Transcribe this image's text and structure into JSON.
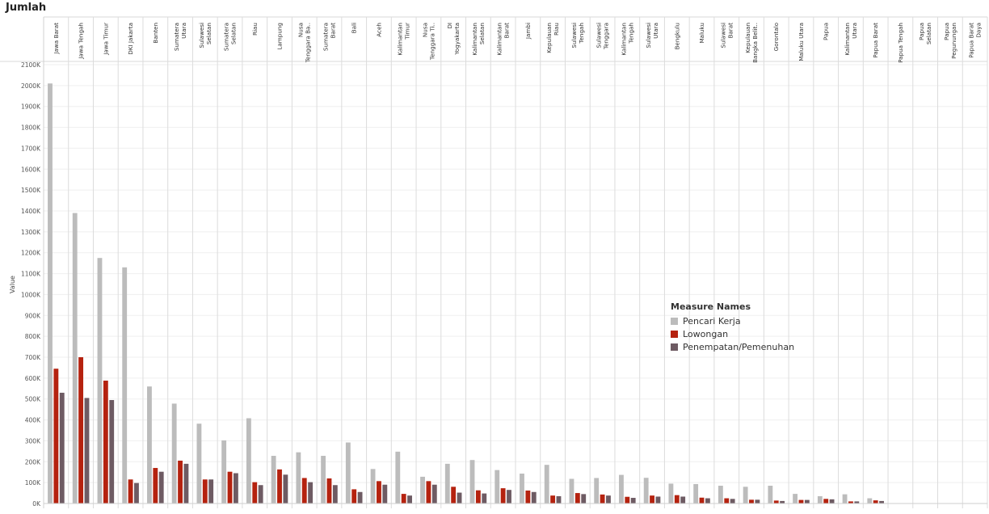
{
  "title": "Jumlah",
  "legend": {
    "title": "Measure Names"
  },
  "chart_data": {
    "type": "bar",
    "ylabel": "Value",
    "ylim": [
      0,
      2100000
    ],
    "yticks": [
      0,
      100000,
      200000,
      300000,
      400000,
      500000,
      600000,
      700000,
      800000,
      900000,
      1000000,
      1100000,
      1200000,
      1300000,
      1400000,
      1500000,
      1600000,
      1700000,
      1800000,
      1900000,
      2000000,
      2100000
    ],
    "ytick_labels": [
      "0K",
      "100K",
      "200K",
      "300K",
      "400K",
      "500K",
      "600K",
      "700K",
      "800K",
      "900K",
      "1000K",
      "1100K",
      "1200K",
      "1300K",
      "1400K",
      "1500K",
      "1600K",
      "1700K",
      "1800K",
      "1900K",
      "2000K",
      "2100K"
    ],
    "legend_placement": "right",
    "categories": [
      [
        "Jawa Barat"
      ],
      [
        "Jawa Tengah"
      ],
      [
        "Jawa Timur"
      ],
      [
        "DKI Jakarta"
      ],
      [
        "Banten"
      ],
      [
        "Sumatera",
        "Utara"
      ],
      [
        "Sulawesi",
        "Selatan"
      ],
      [
        "Sumatera",
        "Selatan"
      ],
      [
        "Riau"
      ],
      [
        "Lampung"
      ],
      [
        "Nusa",
        "Tenggara Ba.."
      ],
      [
        "Sumatera",
        "Barat"
      ],
      [
        "Bali"
      ],
      [
        "Aceh"
      ],
      [
        "Kalimantan",
        "Timur"
      ],
      [
        "Nusa",
        "Tenggara Ti.."
      ],
      [
        "DI",
        "Yogyakarta"
      ],
      [
        "Kalimantan",
        "Selatan"
      ],
      [
        "Kalimantan",
        "Barat"
      ],
      [
        "Jambi"
      ],
      [
        "Kepulauan",
        "Riau"
      ],
      [
        "Sulawesi",
        "Tengah"
      ],
      [
        "Sulawesi",
        "Tenggara"
      ],
      [
        "Kalimantan",
        "Tengah"
      ],
      [
        "Sulawesi",
        "Utara"
      ],
      [
        "Bengkulu"
      ],
      [
        "Maluku"
      ],
      [
        "Sulawesi",
        "Barat"
      ],
      [
        "Kepulauan",
        "Bangka Belit.."
      ],
      [
        "Gorontalo"
      ],
      [
        "Maluku Utara"
      ],
      [
        "Papua"
      ],
      [
        "Kalimantan",
        "Utara"
      ],
      [
        "Papua Barat"
      ],
      [
        "Papua Tengah"
      ],
      [
        "Papua",
        "Selatan"
      ],
      [
        "Papua",
        "Pegunungan"
      ],
      [
        "Papua Barat",
        "Daya"
      ]
    ],
    "series": [
      {
        "name": "Pencari Kerja",
        "color": "#bcbcbc",
        "values": [
          2010000,
          1390000,
          1175000,
          1130000,
          560000,
          478000,
          382000,
          302000,
          408000,
          228000,
          245000,
          228000,
          292000,
          165000,
          248000,
          128000,
          190000,
          208000,
          160000,
          143000,
          185000,
          118000,
          122000,
          137000,
          123000,
          95000,
          93000,
          85000,
          80000,
          85000,
          46000,
          35000,
          44000,
          25000,
          0,
          0,
          0,
          0
        ]
      },
      {
        "name": "Lowongan",
        "color": "#b5220f",
        "values": [
          645000,
          700000,
          588000,
          115000,
          170000,
          205000,
          115000,
          152000,
          102000,
          163000,
          122000,
          120000,
          68000,
          107000,
          46000,
          107000,
          80000,
          63000,
          73000,
          62000,
          38000,
          50000,
          43000,
          32000,
          38000,
          40000,
          28000,
          25000,
          18000,
          14000,
          17000,
          22000,
          10000,
          15000,
          0,
          0,
          0,
          0
        ]
      },
      {
        "name": "Penempatan/Pemenuhan",
        "color": "#6e5b63",
        "values": [
          530000,
          505000,
          495000,
          98000,
          152000,
          190000,
          115000,
          145000,
          88000,
          138000,
          102000,
          88000,
          55000,
          90000,
          38000,
          90000,
          52000,
          48000,
          65000,
          55000,
          35000,
          45000,
          38000,
          27000,
          33000,
          33000,
          25000,
          22000,
          18000,
          12000,
          17000,
          20000,
          10000,
          12000,
          0,
          0,
          0,
          0
        ]
      }
    ]
  }
}
